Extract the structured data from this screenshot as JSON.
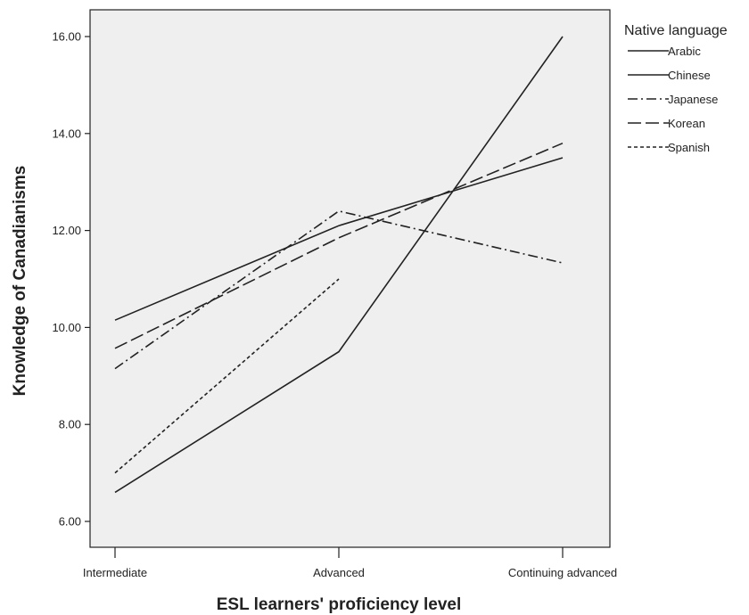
{
  "chart_data": {
    "type": "line",
    "title": "",
    "xlabel": "ESL learners' proficiency level",
    "ylabel": "Knowledge of Canadianisms",
    "categories": [
      "Intermediate",
      "Advanced",
      "Continuing advanced"
    ],
    "ylim": [
      5.0,
      16.6
    ],
    "yticks": [
      "6.00",
      "8.00",
      "10.00",
      "12.00",
      "14.00",
      "16.00"
    ],
    "ytick_values": [
      6,
      8,
      10,
      12,
      14,
      16
    ],
    "grid": false,
    "legend": {
      "title": "Native language",
      "position": "right"
    },
    "plot_background": "#efefef",
    "series": [
      {
        "name": "Arabic",
        "values": [
          6.6,
          9.5,
          16.0
        ],
        "dash": "solid"
      },
      {
        "name": "Chinese",
        "values": [
          10.15,
          12.1,
          13.5
        ],
        "dash": "solid"
      },
      {
        "name": "Japanese",
        "values": [
          9.15,
          12.4,
          11.33
        ],
        "dash": "dashdot"
      },
      {
        "name": "Korean",
        "values": [
          9.57,
          11.85,
          13.8
        ],
        "dash": "longdash"
      },
      {
        "name": "Spanish",
        "values": [
          7.0,
          11.0,
          null
        ],
        "dash": "dotted"
      }
    ]
  }
}
